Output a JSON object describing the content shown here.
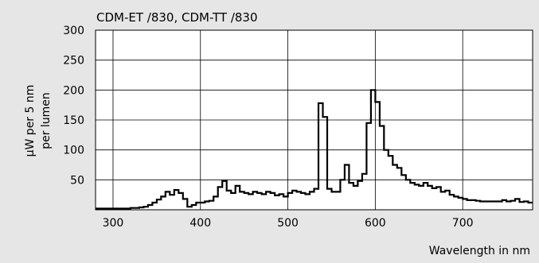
{
  "chart_data": {
    "type": "line",
    "title": "CDM-ET /830, CDM-TT /830",
    "ylabel_line1": "μW per 5 nm",
    "ylabel_line2": "per lumen",
    "xlabel": "Wavelength in nm",
    "xlim": [
      280,
      780
    ],
    "ylim": [
      0,
      300
    ],
    "xticks": [
      300,
      400,
      500,
      600,
      700
    ],
    "yticks": [
      50,
      100,
      150,
      200,
      250,
      300
    ],
    "grid": true,
    "legend": "none",
    "step_width_nm": 5,
    "series": [
      {
        "style": "step",
        "color": "#000000",
        "x": [
          280,
          285,
          290,
          295,
          300,
          305,
          310,
          315,
          320,
          325,
          330,
          335,
          340,
          345,
          350,
          355,
          360,
          365,
          370,
          375,
          380,
          385,
          390,
          395,
          400,
          405,
          410,
          415,
          420,
          425,
          430,
          435,
          440,
          445,
          450,
          455,
          460,
          465,
          470,
          475,
          480,
          485,
          490,
          495,
          500,
          505,
          510,
          515,
          520,
          525,
          530,
          535,
          540,
          545,
          550,
          555,
          560,
          565,
          570,
          575,
          580,
          585,
          590,
          595,
          600,
          605,
          610,
          615,
          620,
          625,
          630,
          635,
          640,
          645,
          650,
          655,
          660,
          665,
          670,
          675,
          680,
          685,
          690,
          695,
          700,
          705,
          710,
          715,
          720,
          725,
          730,
          735,
          740,
          745,
          750,
          755,
          760,
          765,
          770,
          775
        ],
        "y": [
          2,
          2,
          2,
          2,
          2,
          2,
          2,
          2,
          3,
          3,
          4,
          5,
          8,
          12,
          17,
          22,
          30,
          25,
          33,
          28,
          18,
          5,
          8,
          12,
          12,
          14,
          15,
          22,
          38,
          48,
          32,
          28,
          40,
          30,
          28,
          26,
          30,
          28,
          26,
          30,
          28,
          24,
          26,
          22,
          28,
          32,
          30,
          28,
          26,
          30,
          35,
          178,
          155,
          35,
          30,
          30,
          50,
          75,
          45,
          40,
          48,
          60,
          145,
          200,
          180,
          140,
          100,
          90,
          75,
          70,
          58,
          50,
          45,
          42,
          40,
          45,
          40,
          36,
          38,
          30,
          32,
          25,
          22,
          20,
          18,
          16,
          16,
          15,
          14,
          14,
          14,
          14,
          14,
          16,
          14,
          15,
          18,
          13,
          14,
          12
        ]
      }
    ]
  }
}
